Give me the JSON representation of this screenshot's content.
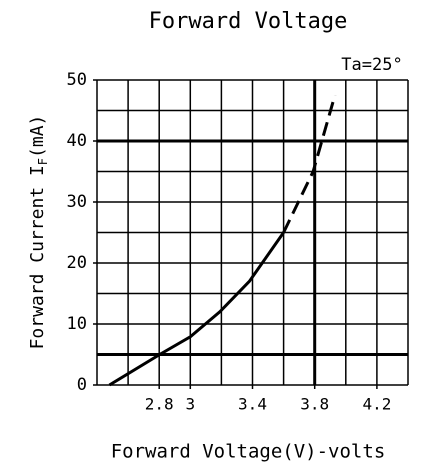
{
  "chart_data": {
    "type": "line",
    "title": "Forward Voltage",
    "annotation": "Ta=25°",
    "xlabel": "Forward Voltage(V)-volts",
    "ylabel": {
      "main": "Forward Current I",
      "sub": "F",
      "tail": "(mA)"
    },
    "xlim": [
      2.4,
      4.4
    ],
    "ylim": [
      0,
      50
    ],
    "xticks": [
      2.8,
      3.0,
      3.4,
      3.8,
      4.2
    ],
    "yticks": [
      0,
      10,
      20,
      30,
      40,
      50
    ],
    "xgrid": [
      2.4,
      2.6,
      2.8,
      3.0,
      3.2,
      3.4,
      3.6,
      3.8,
      4.0,
      4.2,
      4.4
    ],
    "ygrid": [
      0,
      5,
      10,
      15,
      20,
      25,
      30,
      35,
      40,
      45,
      50
    ],
    "xgrid_bold": [
      3.8
    ],
    "ygrid_bold": [
      5,
      40
    ],
    "color": "#000000",
    "series": [
      {
        "style": "solid",
        "x": [
          2.48,
          2.81,
          3.0,
          3.19,
          3.38,
          3.6
        ],
        "values": [
          0,
          5.1,
          7.9,
          12,
          17,
          25
        ]
      },
      {
        "style": "dashed",
        "x": [
          3.6,
          3.79,
          3.93
        ],
        "values": [
          25,
          35,
          47.5
        ]
      }
    ]
  }
}
